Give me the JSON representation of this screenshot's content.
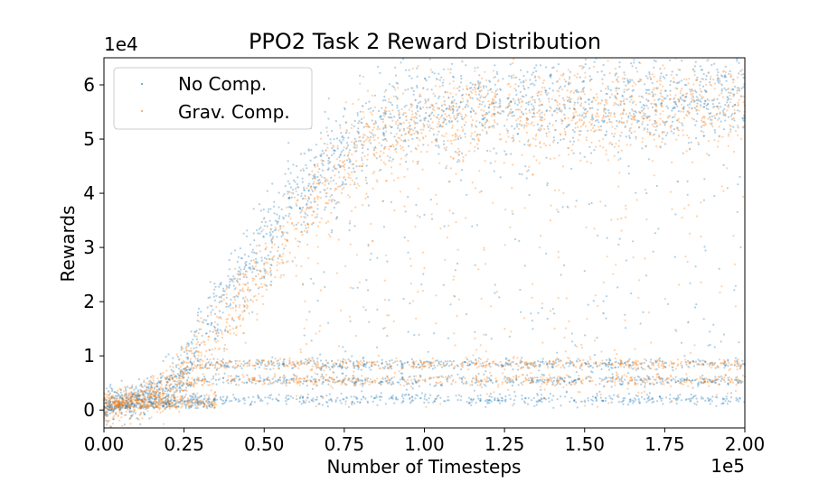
{
  "chart_data": {
    "type": "scatter",
    "title": "PPO2 Task 2 Reward Distribution",
    "xlabel": "Number of Timesteps",
    "ylabel": "Rewards",
    "x_multiplier_label": "1e5",
    "y_multiplier_label": "1e4",
    "xlim": [
      0,
      200000
    ],
    "ylim": [
      -3300,
      65000
    ],
    "x_ticks": [
      0,
      25000,
      50000,
      75000,
      100000,
      125000,
      150000,
      175000,
      200000
    ],
    "x_tick_labels": [
      "0.00",
      "0.25",
      "0.50",
      "0.75",
      "1.00",
      "1.25",
      "1.50",
      "1.75",
      "2.00"
    ],
    "y_ticks": [
      0,
      10000,
      20000,
      30000,
      40000,
      50000,
      60000
    ],
    "y_tick_labels": [
      "0",
      "1",
      "2",
      "3",
      "4",
      "5",
      "6"
    ],
    "grid": false,
    "legend_position": "top-left",
    "series": [
      {
        "name": "No Comp.",
        "color": "#1f77b4",
        "bands_x": [
          0,
          10000,
          20000,
          30000,
          40000,
          50000,
          60000,
          70000,
          80000,
          90000,
          100000,
          125000,
          150000,
          175000,
          200000
        ],
        "high_band_y": [
          500,
          1500,
          5000,
          13000,
          22000,
          31000,
          39000,
          46000,
          51000,
          54000,
          56000,
          57000,
          57500,
          58000,
          58000
        ],
        "low_bands_y": [
          2000,
          5500,
          8500
        ],
        "sample_points": [
          {
            "x": 50000,
            "y": 31000
          },
          {
            "x": 75000,
            "y": 47000
          },
          {
            "x": 100000,
            "y": 56000
          },
          {
            "x": 150000,
            "y": 57500
          },
          {
            "x": 200000,
            "y": 58000
          }
        ]
      },
      {
        "name": "Grav. Comp.",
        "color": "#ff7f0e",
        "bands_x": [
          0,
          10000,
          20000,
          30000,
          40000,
          50000,
          60000,
          70000,
          80000,
          90000,
          100000,
          125000,
          150000,
          175000,
          200000
        ],
        "high_band_y": [
          500,
          1000,
          3500,
          10000,
          18000,
          26000,
          35000,
          43000,
          49000,
          52000,
          54000,
          55000,
          55500,
          56000,
          56000
        ],
        "low_bands_y": [
          5500,
          8500
        ],
        "sample_points": [
          {
            "x": 50000,
            "y": 26000
          },
          {
            "x": 75000,
            "y": 45000
          },
          {
            "x": 100000,
            "y": 54000
          },
          {
            "x": 150000,
            "y": 55500
          },
          {
            "x": 200000,
            "y": 56000
          }
        ]
      }
    ]
  }
}
